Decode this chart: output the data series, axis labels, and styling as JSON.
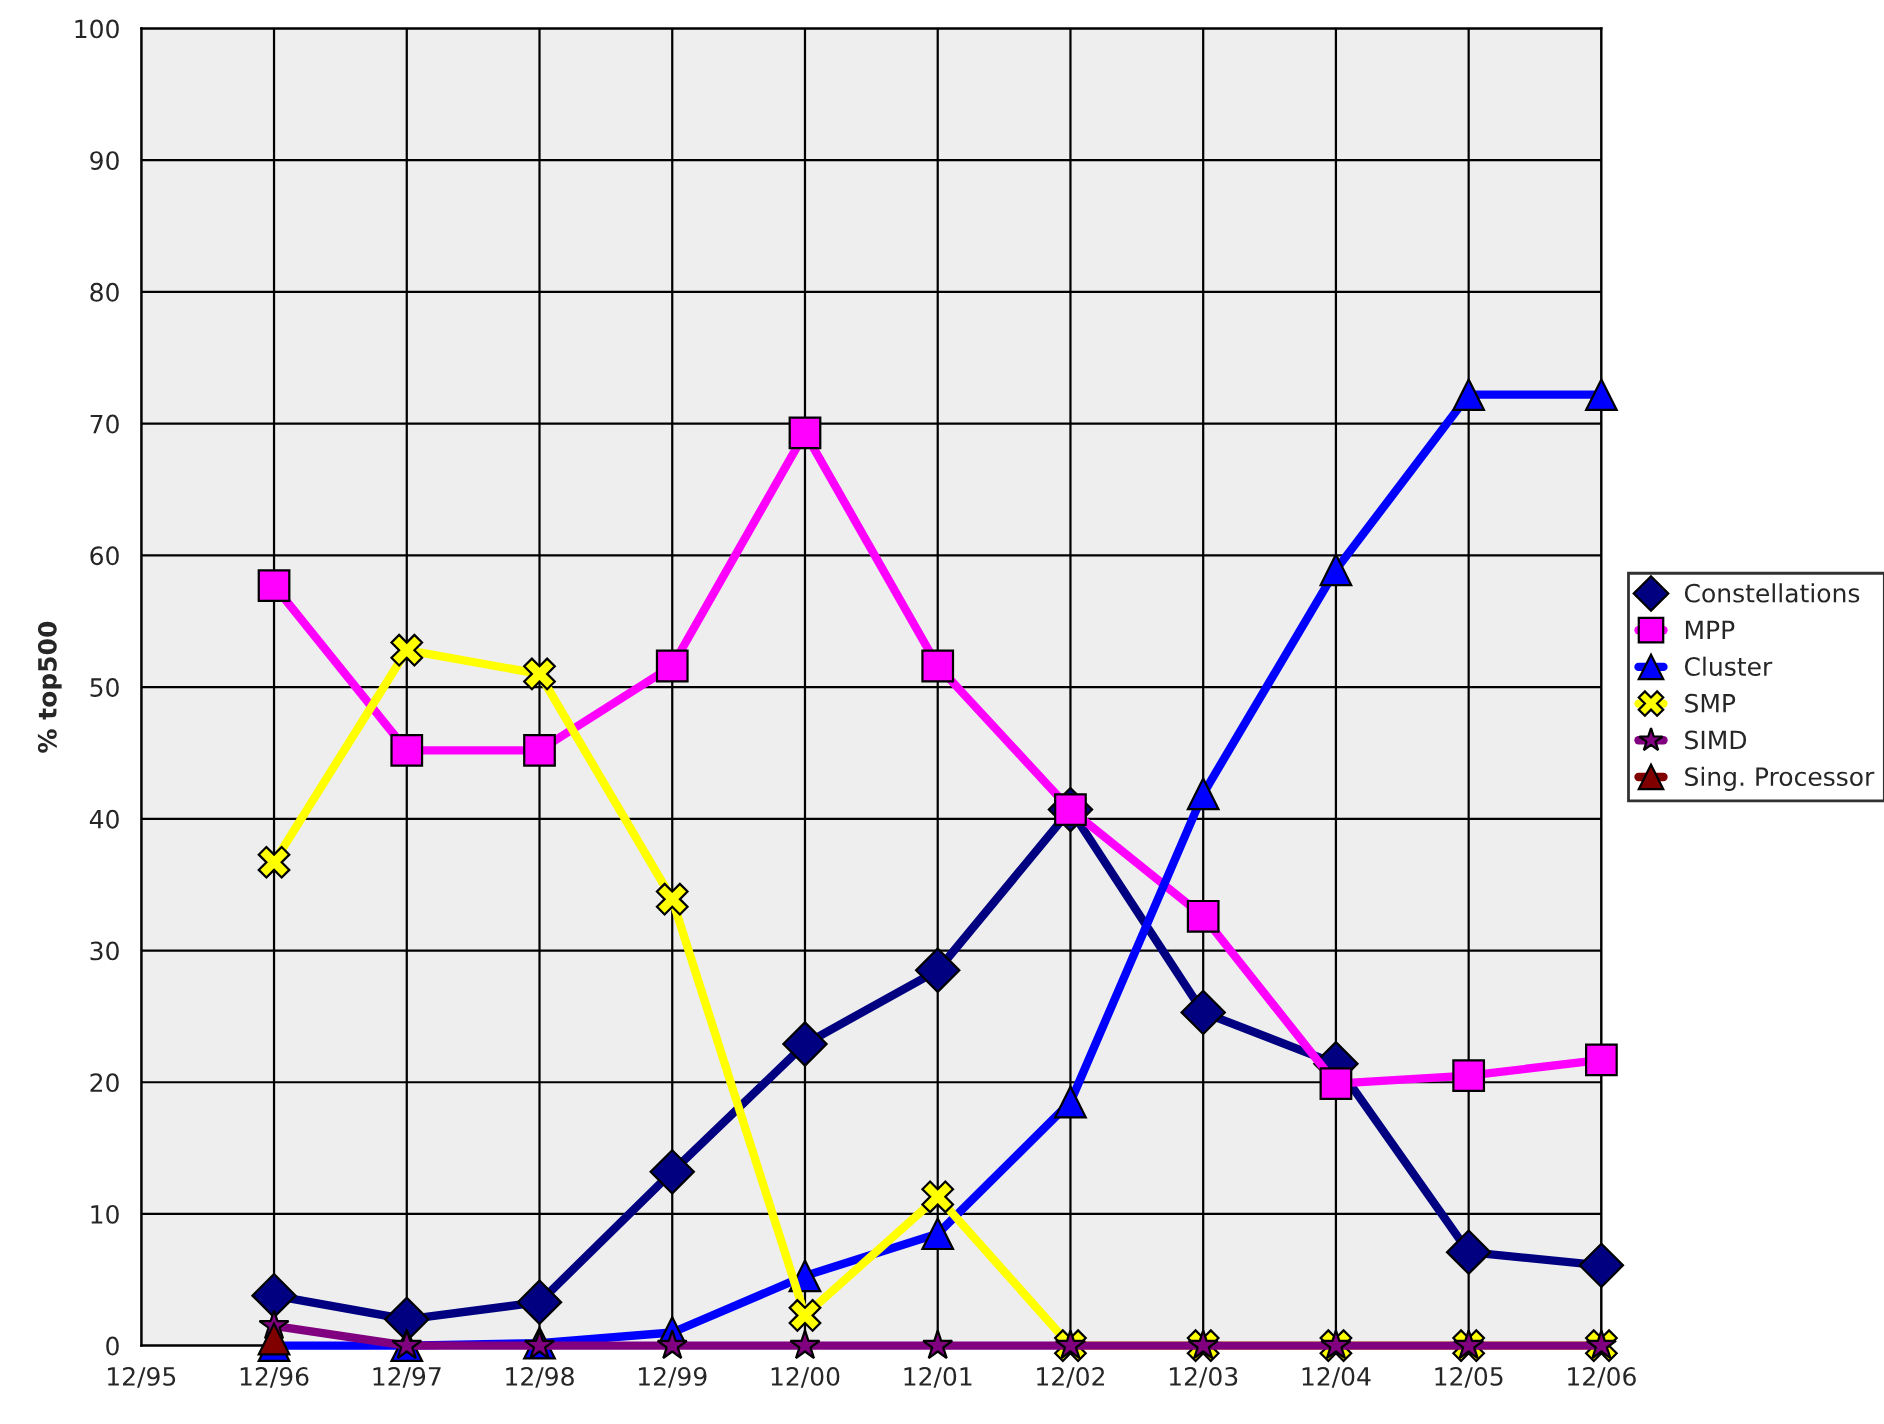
{
  "chart_data": {
    "type": "line",
    "ylabel": "% top500",
    "categories": [
      "12/95",
      "12/96",
      "12/97",
      "12/98",
      "12/99",
      "12/00",
      "12/01",
      "12/02",
      "12/03",
      "12/04",
      "12/05",
      "12/06"
    ],
    "series": [
      {
        "name": "Constellations",
        "color": "#000080",
        "marker": "diamond",
        "values": [
          null,
          3.8,
          2,
          3.3,
          13.2,
          22.9,
          28.5,
          40.7,
          25.3,
          21.4,
          7.1,
          6.1
        ]
      },
      {
        "name": "MPP",
        "color": "#ff00ff",
        "marker": "square",
        "values": [
          null,
          57.7,
          45.2,
          45.2,
          51.6,
          69.3,
          51.6,
          40.7,
          32.6,
          19.9,
          20.5,
          21.7
        ]
      },
      {
        "name": "Cluster",
        "color": "#0000ff",
        "marker": "triangle",
        "values": [
          null,
          0,
          0,
          0.2,
          1,
          5.3,
          8.5,
          18.5,
          41.9,
          58.9,
          72.2,
          72.2
        ]
      },
      {
        "name": "SMP",
        "color": "#ffff00",
        "marker": "cross",
        "values": [
          null,
          36.7,
          52.8,
          51,
          33.9,
          2.3,
          11.3,
          0,
          0,
          0,
          0,
          0
        ]
      },
      {
        "name": "SIMD",
        "color": "#800080",
        "marker": "star",
        "values": [
          null,
          1.5,
          0,
          0,
          0,
          0,
          0,
          0,
          0,
          0,
          0,
          0
        ]
      },
      {
        "name": "Sing. Processor",
        "color": "#800000",
        "marker": "triangle",
        "values": [
          null,
          0.5,
          null,
          null,
          null,
          null,
          null,
          null,
          null,
          null,
          null,
          null
        ]
      }
    ],
    "ylim": [
      0,
      100
    ],
    "yticks": [
      0,
      10,
      20,
      30,
      40,
      50,
      60,
      70,
      80,
      90,
      100
    ],
    "grid": true,
    "legend": "right",
    "line_style": "solid"
  }
}
